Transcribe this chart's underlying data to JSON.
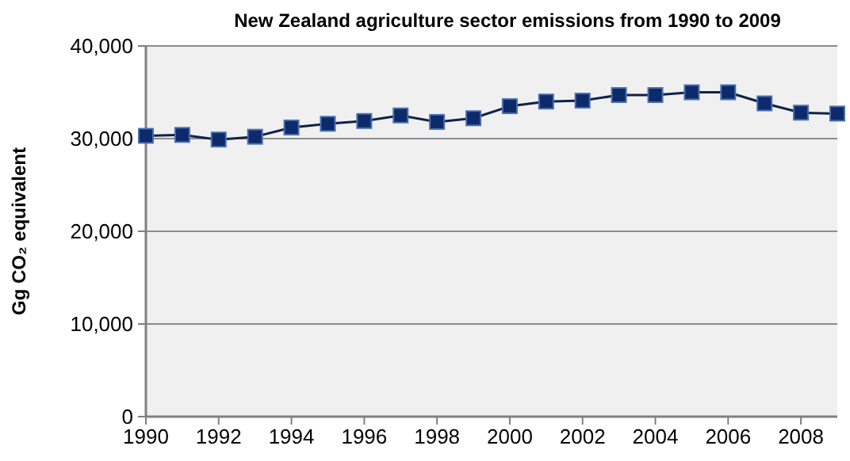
{
  "chart_data": {
    "type": "line",
    "title": "New Zealand agriculture sector emissions from 1990 to 2009",
    "ylabel": "Gg CO₂ equivalent",
    "x": [
      1990,
      1991,
      1992,
      1993,
      1994,
      1995,
      1996,
      1997,
      1998,
      1999,
      2000,
      2001,
      2002,
      2003,
      2004,
      2005,
      2006,
      2007,
      2008,
      2009
    ],
    "series": [
      {
        "color": "#0d2a6b",
        "values": [
          30300,
          30400,
          29900,
          30200,
          31200,
          31600,
          31900,
          32500,
          31800,
          32200,
          33500,
          34000,
          34100,
          34700,
          34700,
          35000,
          35000,
          33800,
          32800,
          32700
        ]
      }
    ],
    "xlim": [
      1990,
      2009
    ],
    "xticks": [
      1990,
      1992,
      1994,
      1996,
      1998,
      2000,
      2002,
      2004,
      2006,
      2008
    ],
    "ylim": [
      0,
      40000
    ],
    "yticks": [
      {
        "value": 0,
        "label": "0"
      },
      {
        "value": 10000,
        "label": "10,000"
      },
      {
        "value": 20000,
        "label": "20,000"
      },
      {
        "value": 30000,
        "label": "30,000"
      },
      {
        "value": 40000,
        "label": "40,000"
      }
    ],
    "grid": "y",
    "marker": "square",
    "line_style": "solid"
  }
}
